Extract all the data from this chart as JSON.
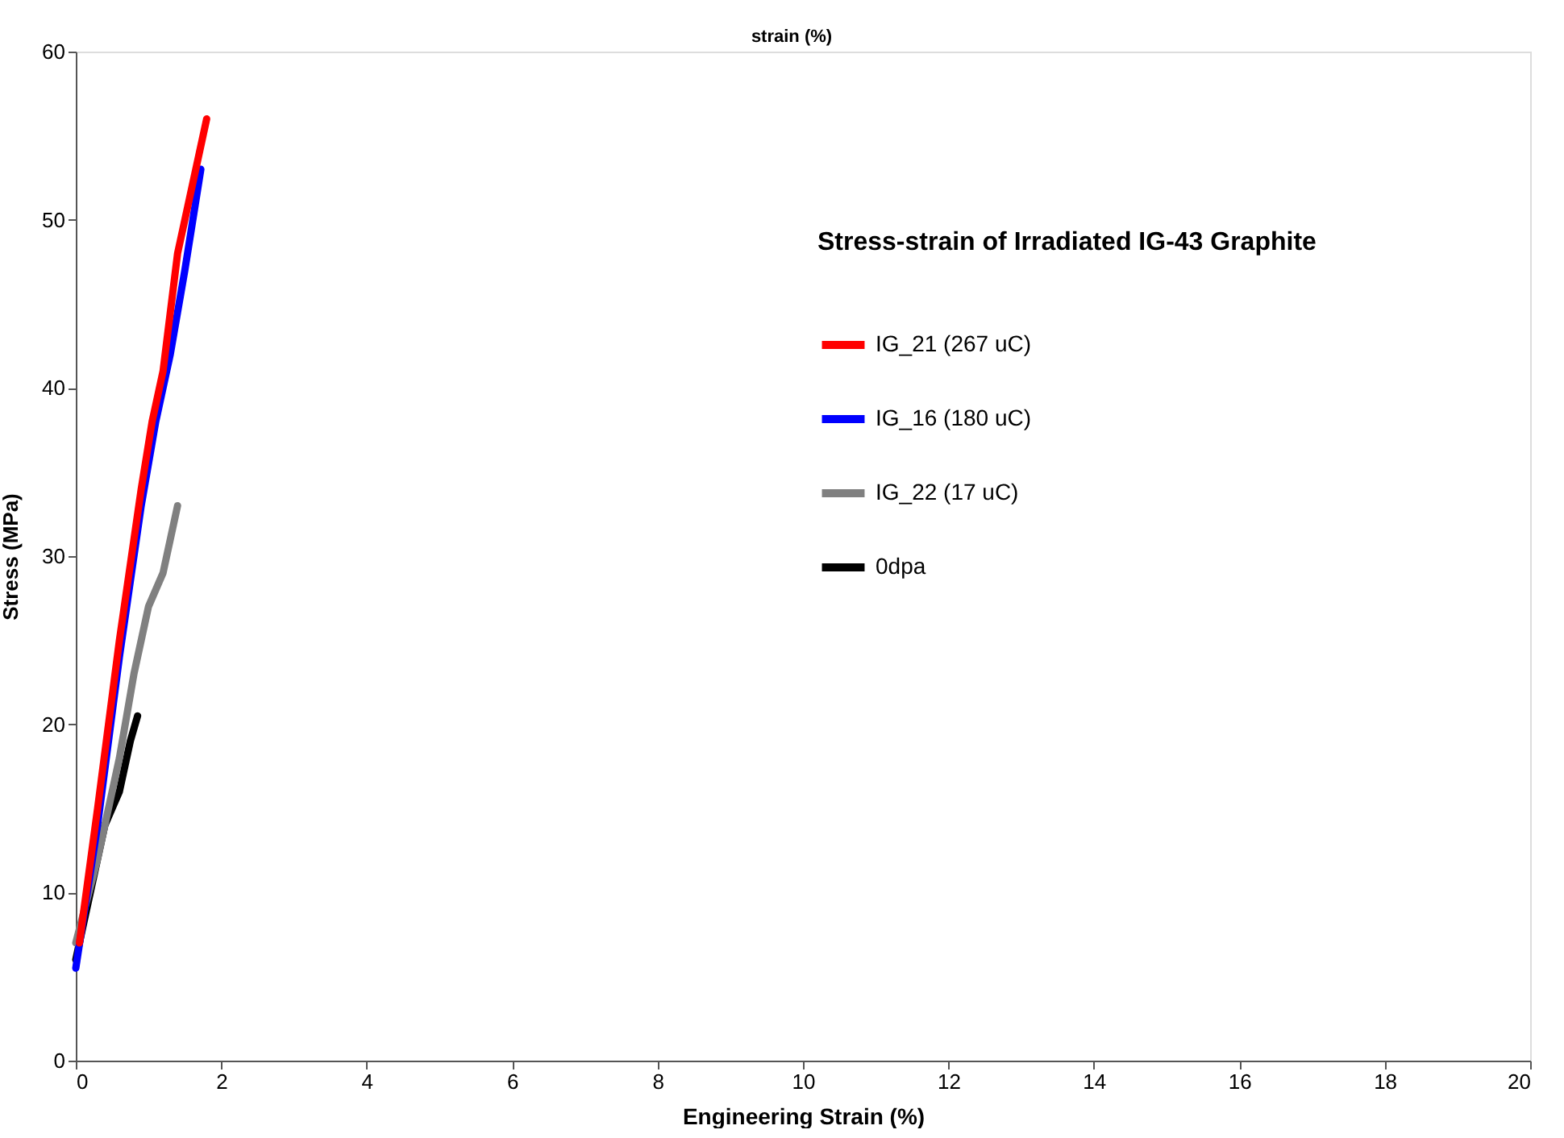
{
  "chart_data": {
    "type": "line",
    "xlabel": "Engineering Strain (%)",
    "ylabel": "Stress (MPa)",
    "legend_title": "Stress-strain of Irradiated IG-43 Graphite",
    "annotations": [
      "strain (%)"
    ],
    "series": [
      {
        "name": "IG_21 (267 uC)",
        "color": "#ff0000",
        "x": [
          0.05,
          0.3,
          0.6,
          0.9,
          1.05,
          1.2,
          1.4,
          1.6,
          1.8
        ],
        "values": [
          7,
          15,
          25,
          34,
          38,
          41,
          48,
          52,
          56
        ]
      },
      {
        "name": "IG_16 (180 uC)",
        "color": "#0000ff",
        "x": [
          0.0,
          0.3,
          0.6,
          0.9,
          1.1,
          1.3,
          1.5,
          1.72
        ],
        "values": [
          5.5,
          14,
          24,
          33,
          38,
          42,
          47,
          53
        ]
      },
      {
        "name": "IG_22 (17 uC)",
        "color": "#808080",
        "x": [
          0.0,
          0.3,
          0.6,
          0.8,
          1.0,
          1.2,
          1.4
        ],
        "values": [
          7,
          12,
          18,
          23,
          27,
          29,
          33
        ]
      },
      {
        "name": "0dpa",
        "color": "#000000",
        "x": [
          0.0,
          0.2,
          0.4,
          0.6,
          0.75,
          0.85
        ],
        "values": [
          6,
          10,
          14,
          16,
          19,
          20.5
        ]
      }
    ],
    "xlim": [
      0,
      20
    ],
    "xticks": [
      0,
      2,
      4,
      6,
      8,
      10,
      12,
      14,
      16,
      18,
      20
    ],
    "ylim": [
      0,
      60
    ],
    "yticks": [
      0,
      10,
      20,
      30,
      40,
      50,
      60
    ],
    "grid": false,
    "legend": "top right",
    "marker": "none",
    "line_style": "solid"
  }
}
